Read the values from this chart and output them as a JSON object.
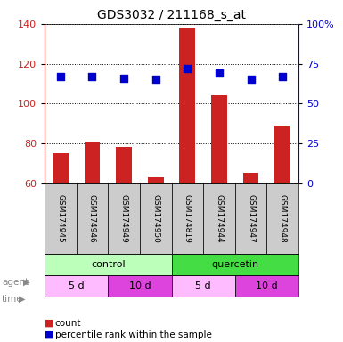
{
  "title": "GDS3032 / 211168_s_at",
  "samples": [
    "GSM174945",
    "GSM174946",
    "GSM174949",
    "GSM174950",
    "GSM174819",
    "GSM174944",
    "GSM174947",
    "GSM174948"
  ],
  "counts": [
    75,
    81,
    78,
    63,
    138,
    104,
    65,
    89
  ],
  "percentile_ranks": [
    67,
    67,
    66,
    65,
    72,
    69,
    65,
    67
  ],
  "ylim_left": [
    60,
    140
  ],
  "ylim_right": [
    0,
    100
  ],
  "yticks_left": [
    60,
    80,
    100,
    120,
    140
  ],
  "yticks_right": [
    0,
    25,
    50,
    75,
    100
  ],
  "bar_color": "#cc2222",
  "dot_color": "#0000cc",
  "agent_groups": [
    {
      "label": "control",
      "start": 0,
      "end": 4,
      "color": "#bbffbb"
    },
    {
      "label": "quercetin",
      "start": 4,
      "end": 8,
      "color": "#44dd44"
    }
  ],
  "time_groups": [
    {
      "label": "5 d",
      "start": 0,
      "end": 2,
      "color": "#ffbbff"
    },
    {
      "label": "10 d",
      "start": 2,
      "end": 4,
      "color": "#dd44dd"
    },
    {
      "label": "5 d",
      "start": 4,
      "end": 6,
      "color": "#ffbbff"
    },
    {
      "label": "10 d",
      "start": 6,
      "end": 8,
      "color": "#dd44dd"
    }
  ],
  "sample_bg_color": "#cccccc",
  "left_axis_color": "#cc2222",
  "right_axis_color": "#0000cc"
}
